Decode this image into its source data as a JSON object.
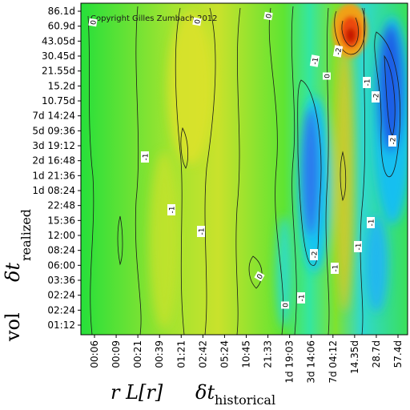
{
  "chart_data": {
    "type": "heatmap",
    "copyright": "Copyright Gilles Zumbach 2012",
    "x_axis": {
      "label_main": "r L[r]",
      "label_delta": "δt",
      "label_sub": "historical",
      "ticks": [
        "00:06",
        "00:09",
        "00:21",
        "00:39",
        "01:21",
        "02:42",
        "05:24",
        "10:45",
        "21:33",
        "1d 19:03",
        "3d 14:06",
        "7d 04:12",
        "14.35d",
        "28.7d",
        "57.4d"
      ]
    },
    "y_axis": {
      "label_main": "vol",
      "label_delta": "δt",
      "label_sub": "realized",
      "ticks": [
        "86.1d",
        "60.9d",
        "43.05d",
        "30.45d",
        "21.55d",
        "15.2d",
        "10.75d",
        "7d 14:24",
        "5d 09:36",
        "3d 19:12",
        "2d 16:48",
        "1d 21:36",
        "1d 08:24",
        "22:48",
        "15:36",
        "12:00",
        "08:24",
        "06:00",
        "03:36",
        "02:24",
        "02:24",
        "01:12"
      ]
    },
    "color_scale": [
      "#0a3fd0",
      "#2a7ff0",
      "#18c8f2",
      "#12e2a6",
      "#24e53c",
      "#8fe62c",
      "#d4e02a",
      "#f0b020",
      "#f07014",
      "#e02808"
    ],
    "contour_labels": [
      "0",
      "0",
      "-1",
      "-2",
      "0",
      "0",
      "-2",
      "-2",
      "-1",
      "-1",
      "-1",
      "-1",
      "-2",
      "-1",
      "-1",
      "0",
      "0",
      "-1",
      "-1"
    ],
    "features": [
      {
        "kind": "positive-peak",
        "x": "14.35d",
        "y": "43.05d"
      },
      {
        "kind": "negative-band",
        "x": "3d 14:06",
        "y_range": [
          "02:24",
          "21.55d"
        ]
      },
      {
        "kind": "negative-band",
        "x": "28.7d",
        "y_range": [
          "03:36",
          "43.05d"
        ]
      }
    ]
  }
}
